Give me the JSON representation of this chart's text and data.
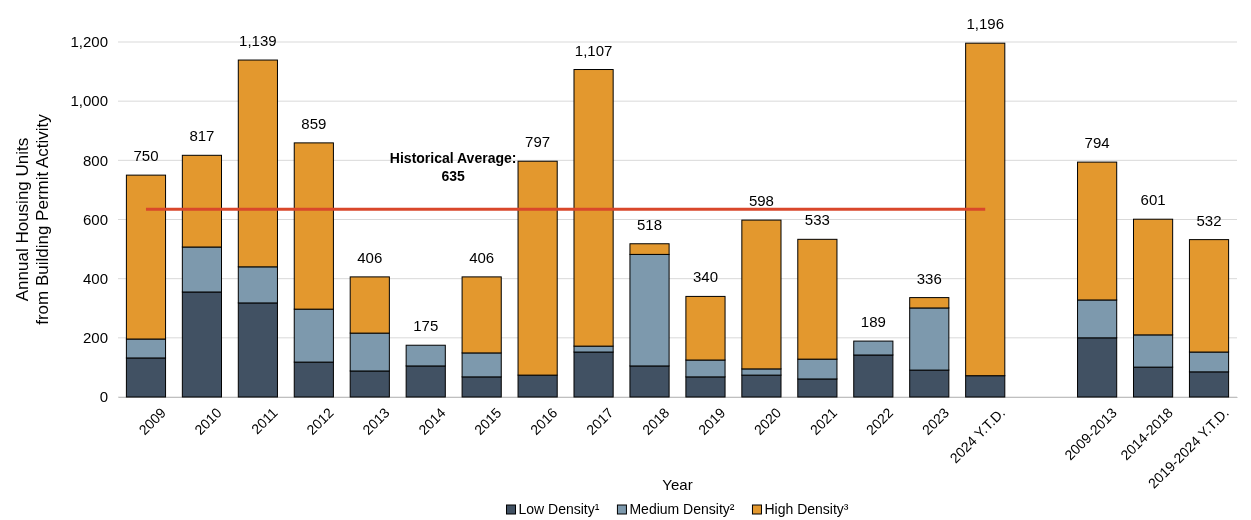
{
  "chart_data": {
    "type": "bar",
    "stacked": true,
    "xlabel": "Year",
    "ylabel": "Annual Housing Units\nfrom Building Permit Activity",
    "categories": [
      "2009",
      "2010",
      "2011",
      "2012",
      "2013",
      "2014",
      "2015",
      "2016",
      "2017",
      "2018",
      "2019",
      "2020",
      "2021",
      "2022",
      "2023",
      "2024 Y.T.D.",
      null,
      "2009-2013",
      "2014-2018",
      "2019-2024 Y.T.D."
    ],
    "series": [
      {
        "name": "Low Density¹",
        "color": "#415163",
        "values": [
          132,
          355,
          318,
          118,
          88,
          105,
          68,
          74,
          152,
          105,
          68,
          74,
          61,
          142,
          91,
          72,
          null,
          200,
          101,
          85
        ]
      },
      {
        "name": "Medium Density²",
        "color": "#7d99ad",
        "values": [
          64,
          152,
          122,
          179,
          128,
          70,
          81,
          0,
          20,
          377,
          57,
          21,
          67,
          47,
          210,
          null,
          null,
          128,
          109,
          67
        ]
      },
      {
        "name": "High Density³",
        "color": "#e3982e",
        "values": [
          554,
          310,
          699,
          562,
          190,
          0,
          257,
          723,
          935,
          36,
          215,
          503,
          405,
          0,
          35,
          1124,
          null,
          466,
          391,
          380
        ]
      }
    ],
    "totals": [
      "750",
      "817",
      "1,139",
      "859",
      "406",
      "175",
      "406",
      "797",
      "1,107",
      "518",
      "340",
      "598",
      "533",
      "189",
      "336",
      "1,196",
      null,
      "794",
      "601",
      "532"
    ],
    "ylim": [
      0,
      1200
    ],
    "yticks": [
      {
        "value": 0,
        "label": "0"
      },
      {
        "value": 200,
        "label": "200"
      },
      {
        "value": 400,
        "label": "400"
      },
      {
        "value": 600,
        "label": "600"
      },
      {
        "value": 800,
        "label": "800"
      },
      {
        "value": 1000,
        "label": "1,000"
      },
      {
        "value": 1200,
        "label": "1,200"
      }
    ],
    "grid": "y",
    "legend": "bottom",
    "ref_lines": [
      {
        "axis": "y",
        "value": 635,
        "label": "Historical Average:\n635",
        "color": "#d9472b"
      }
    ]
  }
}
